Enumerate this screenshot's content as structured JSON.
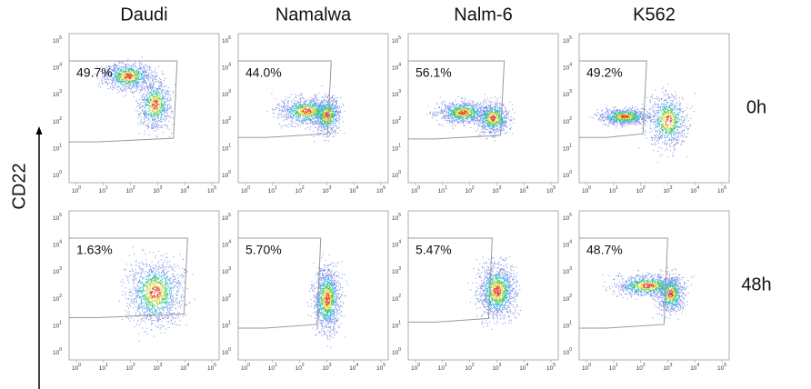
{
  "columns": [
    "Daudi",
    "Namalwa",
    "Nalm-6",
    "K562"
  ],
  "rows": [
    "0h",
    "48h"
  ],
  "y_axis_label": "CD22",
  "axis_ticks": {
    "base": "10",
    "exponents": [
      "0",
      "1",
      "2",
      "3",
      "4",
      "5"
    ]
  },
  "panels": [
    [
      "49.7%",
      "44.0%",
      "56.1%",
      "49.2%"
    ],
    [
      "1.63%",
      "5.70%",
      "5.47%",
      "48.7%"
    ]
  ]
}
